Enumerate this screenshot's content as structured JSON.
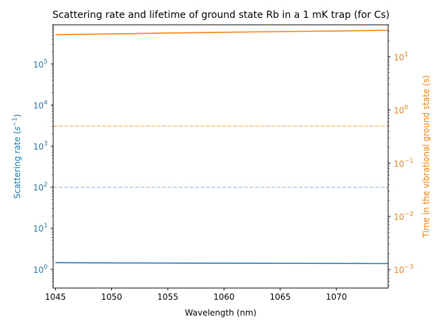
{
  "chart_data": {
    "type": "line",
    "title": "Scattering rate and lifetime of ground state Rb in a 1 mK trap (for Cs)",
    "xlabel": "Wavelength (nm)",
    "ylabel_left": "Scattering rate ($s^{-1}$)",
    "ylabel_left_parts": {
      "base": "Scattering rate (",
      "sym": "s",
      "sup": "−1",
      "end": ")"
    },
    "ylabel_right": "Time in the vibrational ground state (s)",
    "xlim": [
      1044.8,
      1074.6
    ],
    "xticks": [
      1045,
      1050,
      1055,
      1060,
      1065,
      1070
    ],
    "xtick_labels": [
      "1045",
      "1050",
      "1055",
      "1060",
      "1065",
      "1070"
    ],
    "left_axis": {
      "scale": "log",
      "ylim": [
        0.35,
        900000
      ],
      "major_ticks": [
        1,
        10,
        100,
        1000,
        10000,
        100000
      ],
      "tick_labels": [
        {
          "base": "10",
          "exp": "0"
        },
        {
          "base": "10",
          "exp": "1"
        },
        {
          "base": "10",
          "exp": "2"
        },
        {
          "base": "10",
          "exp": "3"
        },
        {
          "base": "10",
          "exp": "4"
        },
        {
          "base": "10",
          "exp": "5"
        }
      ],
      "color": "#1f77b4"
    },
    "right_axis": {
      "scale": "log",
      "ylim": [
        0.00045,
        40
      ],
      "major_ticks": [
        0.001,
        0.01,
        0.1,
        1,
        10
      ],
      "tick_labels": [
        {
          "base": "10",
          "exp": "−3"
        },
        {
          "base": "10",
          "exp": "−2"
        },
        {
          "base": "10",
          "exp": "−1"
        },
        {
          "base": "10",
          "exp": "0"
        },
        {
          "base": "10",
          "exp": "1"
        }
      ],
      "color": "#ff7f0e"
    },
    "series": [
      {
        "axis": "left",
        "style": "solid",
        "color": "#1f77b4",
        "x": [
          1045,
          1050,
          1055,
          1060,
          1065,
          1070,
          1074.6
        ],
        "y": [
          1.45,
          1.43,
          1.42,
          1.41,
          1.4,
          1.39,
          1.38
        ]
      },
      {
        "axis": "right",
        "style": "solid",
        "color": "#ff7f0e",
        "x": [
          1045,
          1050,
          1055,
          1060,
          1065,
          1070,
          1074.6
        ],
        "y": [
          26.0,
          27.0,
          28.0,
          29.0,
          29.8,
          30.6,
          31.5
        ]
      },
      {
        "axis": "left",
        "style": "dashed",
        "color": "#aec7e8",
        "x": [
          1044.8,
          1074.6
        ],
        "y": [
          100,
          100
        ]
      },
      {
        "axis": "right",
        "style": "dashed",
        "color": "#ffbb78",
        "x": [
          1044.8,
          1074.6
        ],
        "y": [
          0.5,
          0.5
        ]
      }
    ],
    "grid": false
  }
}
